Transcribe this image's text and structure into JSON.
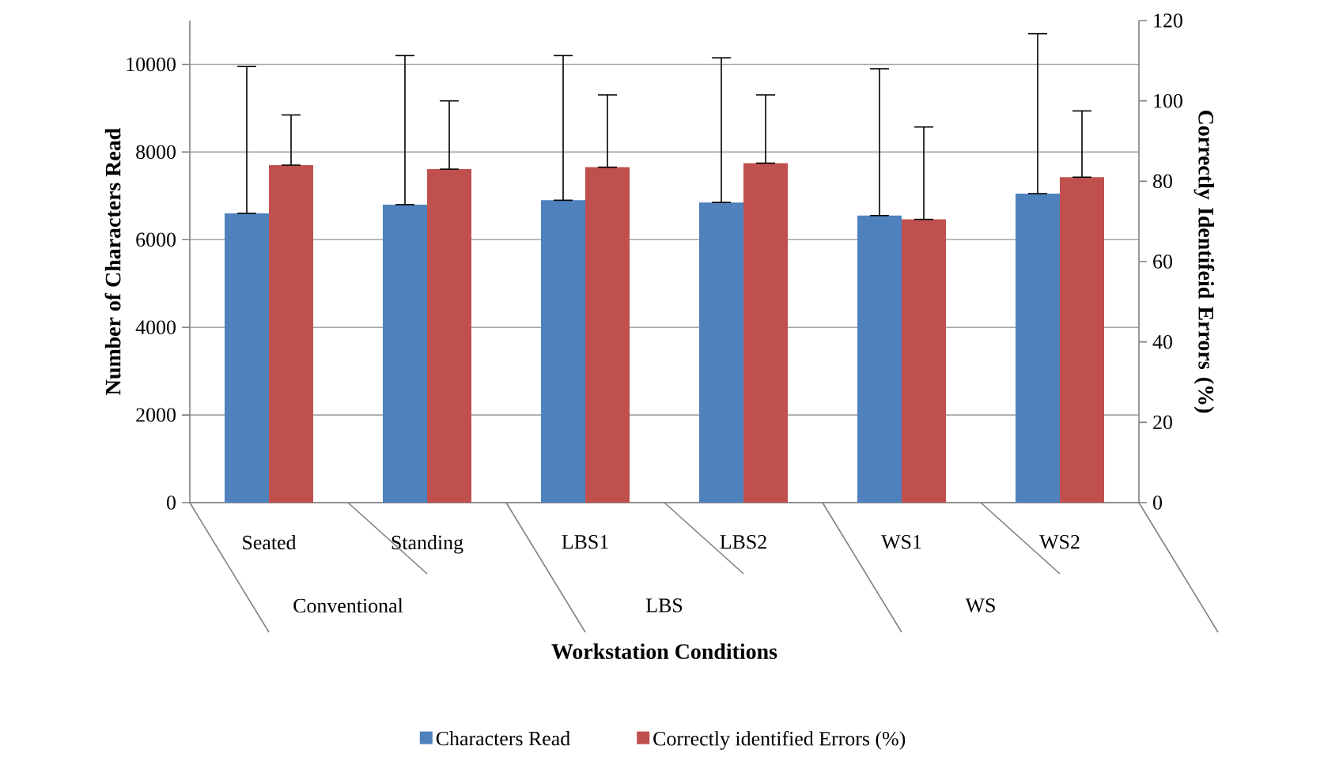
{
  "chart_data": {
    "type": "bar",
    "categories": [
      "Seated",
      "Standing",
      "LBS1",
      "LBS2",
      "WS1",
      "WS2"
    ],
    "annotations": [
      "Conventional",
      "LBS",
      "WS"
    ],
    "xlabel": "Workstation Conditions",
    "ylabel": "Number of Characters Read",
    "y2label": "Correctly Identifeid Errors (%)",
    "series": [
      {
        "name": "Characters Read",
        "color": "#4f81bd",
        "values": [
          6600,
          6800,
          6900,
          6850,
          6550,
          7050
        ],
        "errors": [
          [
            6600,
            9950
          ],
          [
            6800,
            10200
          ],
          [
            6900,
            10200
          ],
          [
            6850,
            10150
          ],
          [
            6550,
            9900
          ],
          [
            7050,
            10700
          ]
        ]
      },
      {
        "name": "Correctly identified Errors (%)",
        "color": "#c0504d",
        "axis": "y2",
        "values": [
          84,
          83,
          83.5,
          84.5,
          70.5,
          81
        ],
        "errors": [
          [
            84,
            96.5
          ],
          [
            83,
            100
          ],
          [
            83.5,
            101.5
          ],
          [
            84.5,
            101.5
          ],
          [
            70.5,
            93.5
          ],
          [
            81,
            97.5
          ]
        ]
      }
    ],
    "ylim": [
      0,
      11000
    ],
    "yticks": [
      0,
      2000,
      4000,
      6000,
      8000,
      10000
    ],
    "y2lim": [
      0,
      120
    ],
    "y2ticks": [
      0,
      20,
      40,
      60,
      80,
      100,
      120
    ],
    "grid": "y",
    "legend": "bottom"
  }
}
